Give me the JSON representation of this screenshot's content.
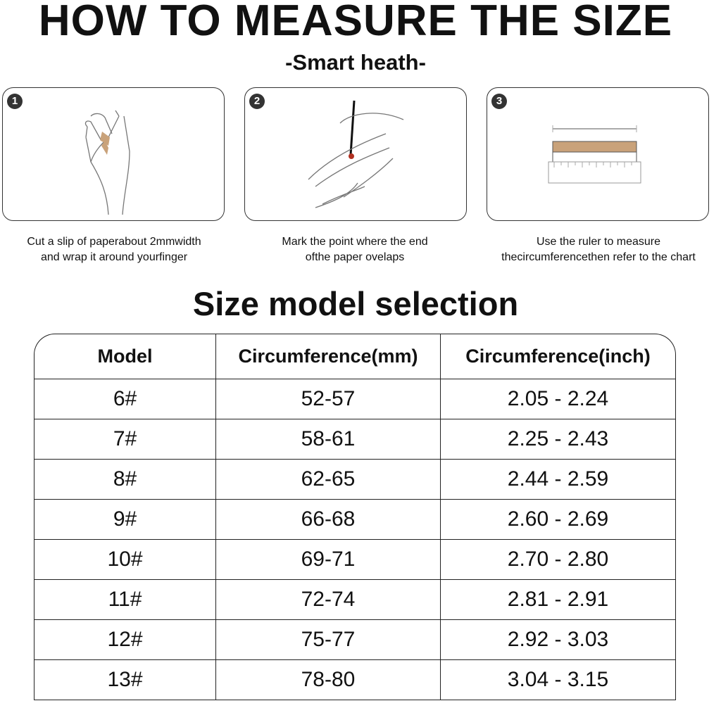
{
  "title": "HOW TO MEASURE THE SIZE",
  "subtitle": "-Smart heath-",
  "steps": [
    {
      "number": "1",
      "caption1": "Cut a slip of paperabout 2mmwidth",
      "caption2": "and wrap it around yourfinger",
      "icon": "hand-paper-wrap-icon"
    },
    {
      "number": "2",
      "caption1": "Mark the point where the end",
      "caption2": "ofthe paper ovelaps",
      "icon": "hand-pen-mark-icon"
    },
    {
      "number": "3",
      "caption1": "Use the ruler to measure",
      "caption2": "thecircumferencethen refer to the chart",
      "icon": "ruler-icon"
    }
  ],
  "section_title": "Size model selection",
  "table": {
    "headers": [
      "Model",
      "Circumference(mm)",
      "Circumference(inch)"
    ],
    "rows": [
      [
        "6#",
        "52-57",
        "2.05 - 2.24"
      ],
      [
        "7#",
        "58-61",
        "2.25 - 2.43"
      ],
      [
        "8#",
        "62-65",
        "2.44 - 2.59"
      ],
      [
        "9#",
        "66-68",
        "2.60 - 2.69"
      ],
      [
        "10#",
        "69-71",
        "2.70 - 2.80"
      ],
      [
        "11#",
        "72-74",
        "2.81 - 2.91"
      ],
      [
        "12#",
        "75-77",
        "2.92 - 3.03"
      ],
      [
        "13#",
        "78-80",
        "3.04 - 3.15"
      ]
    ]
  },
  "colors": {
    "paper": "#c9a27a",
    "mark": "#b03020"
  }
}
